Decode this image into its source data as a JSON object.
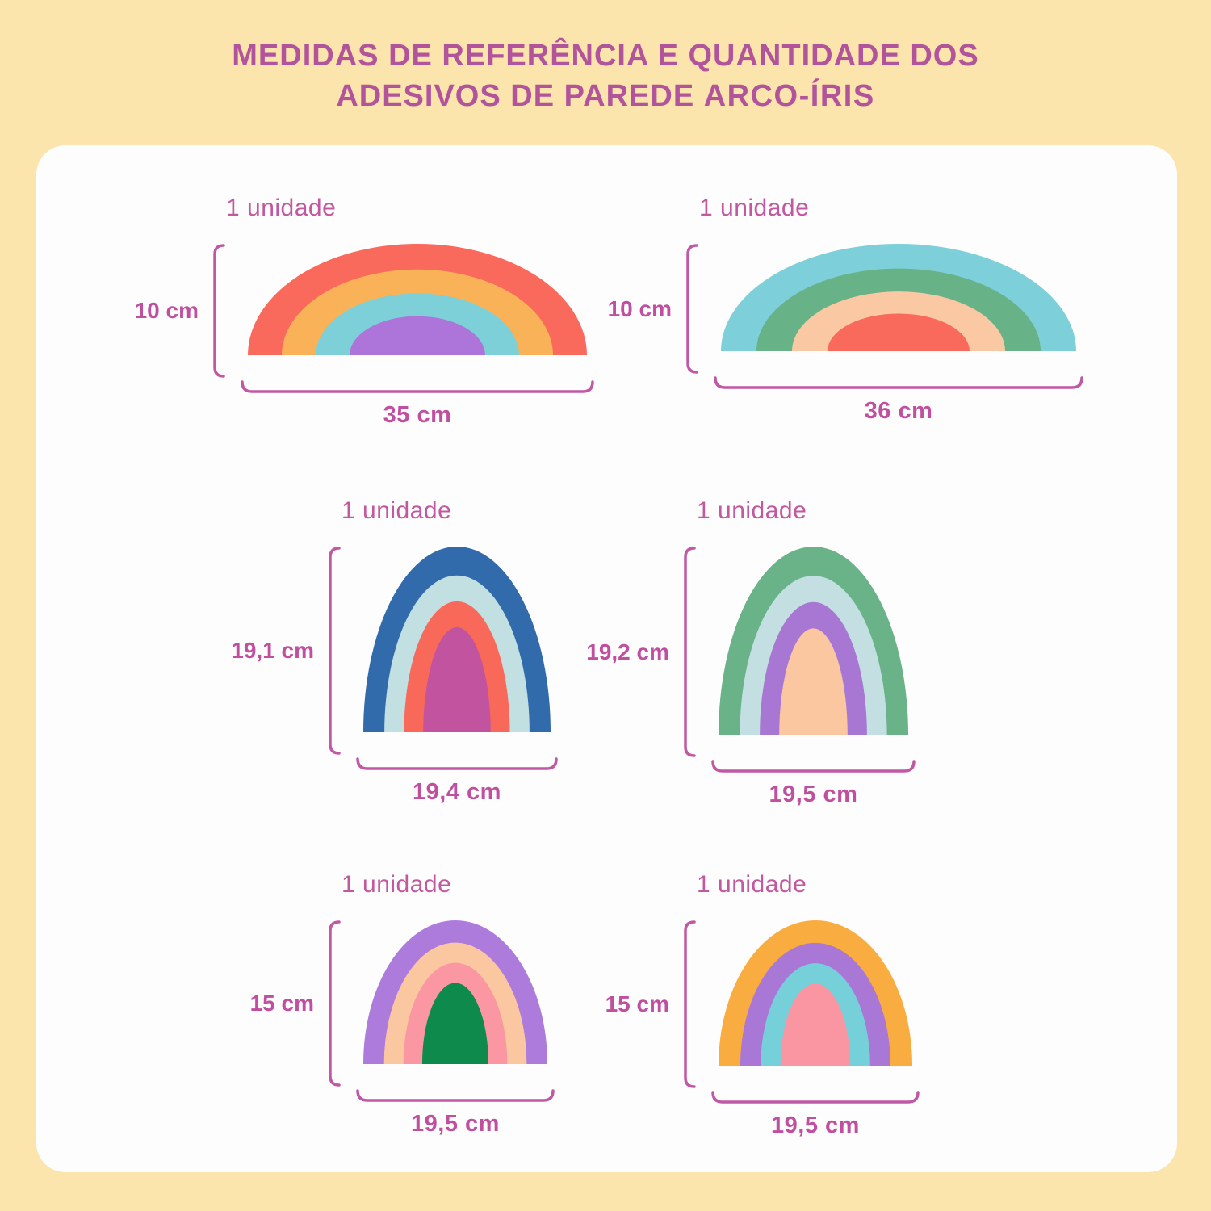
{
  "title": {
    "line1": "MEDIDAS DE REFERÊNCIA E QUANTIDADE DOS",
    "line2_prefix": "ADESIVOS DE PAREDE ",
    "line2_bold": "ARCO-ÍRIS"
  },
  "colors": {
    "background": "#FCE5AC",
    "card": "#FDFDFD",
    "title_text": "#B2549C",
    "accent": "#C158A5"
  },
  "items": [
    {
      "quantity": "1 unidade",
      "height": "10 cm",
      "width": "35 cm",
      "shape": "wide",
      "bands": [
        "#F9695C",
        "#F9B257",
        "#7DD0D8",
        "#AD74D9"
      ]
    },
    {
      "quantity": "1 unidade",
      "height": "10 cm",
      "width": "36 cm",
      "shape": "wide",
      "bands": [
        "#7DD0DA",
        "#68B287",
        "#FBC8A4",
        "#F9695C"
      ]
    },
    {
      "quantity": "1 unidade",
      "height": "19,1 cm",
      "width": "19,4 cm",
      "shape": "tall",
      "bands": [
        "#316BAC",
        "#C2DFE1",
        "#F9695A",
        "#C2539E"
      ]
    },
    {
      "quantity": "1 unidade",
      "height": "19,2 cm",
      "width": "19,5 cm",
      "shape": "tall",
      "bands": [
        "#6AB389",
        "#C3DFE1",
        "#A877D4",
        "#FBC7A0"
      ]
    },
    {
      "quantity": "1 unidade",
      "height": "15 cm",
      "width": "19,5 cm",
      "shape": "tall",
      "bands": [
        "#AC7BDB",
        "#FBC7A0",
        "#FB97A3",
        "#0E8A4C"
      ]
    },
    {
      "quantity": "1 unidade",
      "height": "15 cm",
      "width": "19,5 cm",
      "shape": "tall",
      "bands": [
        "#F9AC40",
        "#A978D6",
        "#75D0DA",
        "#FA96A2"
      ]
    }
  ]
}
